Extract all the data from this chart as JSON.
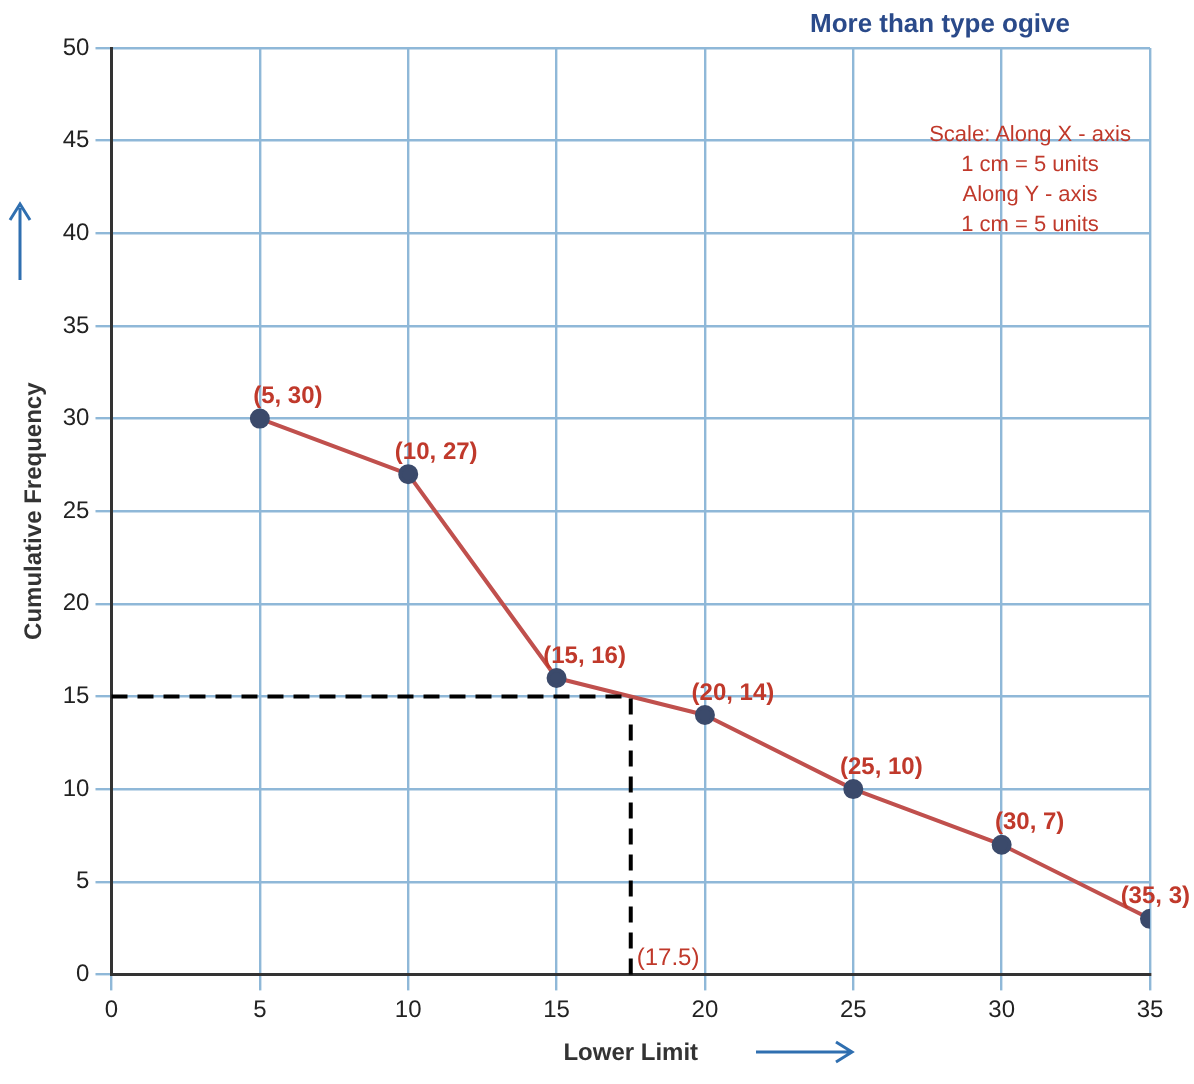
{
  "chart_data": {
    "type": "line",
    "title": "More than type ogive",
    "xlabel": "Lower Limit",
    "ylabel": "Cumulative Frequency",
    "x": [
      5,
      10,
      15,
      20,
      25,
      30,
      35
    ],
    "series": [
      {
        "color": "#c0504d",
        "values": [
          30,
          27,
          16,
          14,
          10,
          7,
          3
        ],
        "value_labels": [
          "(5, 30)",
          "(10, 27)",
          "(15, 16)",
          "(20, 14)",
          "(25, 10)",
          "(30, 7)",
          "(35, 3)"
        ]
      }
    ],
    "xlim": [
      0,
      35
    ],
    "xticks": [
      0,
      5,
      10,
      15,
      20,
      25,
      30,
      35
    ],
    "ylim": [
      0,
      50
    ],
    "yticks": [
      0,
      5,
      10,
      15,
      20,
      25,
      30,
      35,
      40,
      45,
      50
    ],
    "grid": true,
    "legend": false,
    "marker": "circle",
    "line_style": "solid",
    "ref_lines": [
      {
        "axis": "y",
        "value": 15,
        "line_style": "dashed",
        "color": "#000000"
      },
      {
        "axis": "x",
        "value": 17.5,
        "label": "(17.5)",
        "line_style": "dashed",
        "color": "#000000"
      }
    ],
    "annotations": [
      "Scale: Along X - axis",
      "1 cm = 5 units",
      "Along Y - axis",
      "1 cm = 5 units"
    ]
  }
}
